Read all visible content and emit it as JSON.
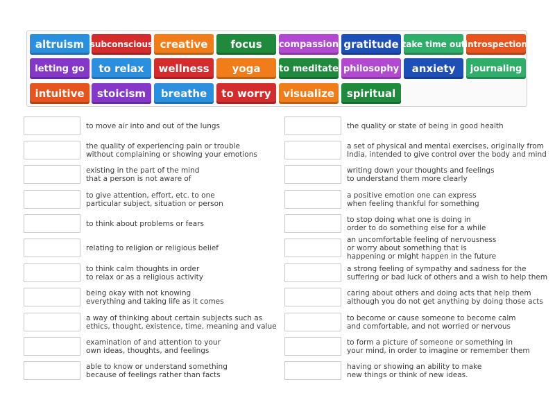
{
  "word_bank": [
    {
      "label": "altruism",
      "color": "#2b8fdf"
    },
    {
      "label": "subconscious",
      "color": "#d42c2c"
    },
    {
      "label": "creative",
      "color": "#f07d1a"
    },
    {
      "label": "focus",
      "color": "#1f8a3c"
    },
    {
      "label": "compassion",
      "color": "#b14ad0"
    },
    {
      "label": "gratitude",
      "color": "#1e4fb6"
    },
    {
      "label": "take time out",
      "color": "#2fae6a"
    },
    {
      "label": "introspection",
      "color": "#e8541d"
    },
    {
      "label": "letting go",
      "color": "#8437c8"
    },
    {
      "label": "to relax",
      "color": "#2b8fdf"
    },
    {
      "label": "wellness",
      "color": "#d42c2c"
    },
    {
      "label": "yoga",
      "color": "#f07d1a"
    },
    {
      "label": "to meditate",
      "color": "#1f8a3c"
    },
    {
      "label": "philosophy",
      "color": "#b14ad0"
    },
    {
      "label": "anxiety",
      "color": "#1e4fb6"
    },
    {
      "label": "journaling",
      "color": "#2fae6a"
    },
    {
      "label": "intuitive",
      "color": "#e8541d"
    },
    {
      "label": "stoicism",
      "color": "#8437c8"
    },
    {
      "label": "breathe",
      "color": "#2b8fdf"
    },
    {
      "label": "to worry",
      "color": "#d42c2c"
    },
    {
      "label": "visualize",
      "color": "#f07d1a"
    },
    {
      "label": "spiritual",
      "color": "#1f8a3c"
    }
  ],
  "definitions_left": [
    "to move air into and out of the lungs",
    "the quality of experiencing pain or trouble\nwithout complaining or showing your emotions",
    "existing in the part of the mind\nthat a person is not aware of",
    "to give attention, effort, etc. to one\nparticular subject, situation or person",
    "to think about problems or fears",
    "relating to religion or religious belief",
    "to think calm thoughts in order\nto relax or as a religious activity",
    "being okay with not knowing\neverything and taking life as it comes",
    "a way of thinking about certain subjects such as\nethics, thought, existence, time, meaning and value",
    "examination of and attention to your\nown ideas, thoughts, and feelings",
    "able to know or understand something\nbecause of feelings rather than facts"
  ],
  "definitions_right": [
    "the quality or state of being in good health",
    "a set of physical and mental exercises, originally from\nIndia, intended to give control over the body and mind",
    "writing down your thoughts and feelings\nto understand them more clearly",
    "a positive emotion one can express\nwhen feeling thankful for something",
    "to stop doing what one is doing in\norder to do something else for a while",
    "an uncomfortable feeling of nervousness\nor worry about something that is\nhappening or might happen in the future",
    "a strong feeling of sympathy and sadness for the\nsuffering or bad luck of others and a wish to help them",
    "caring about others and doing acts that help them\nalthough you do not get anything by doing those acts",
    "to become or cause someone to become calm\nand comfortable, and not worried or nervous",
    "to form a picture of someone or something in\nyour mind, in order to imagine or remember them",
    "having or showing an ability to make\nnew things or think of new ideas."
  ]
}
